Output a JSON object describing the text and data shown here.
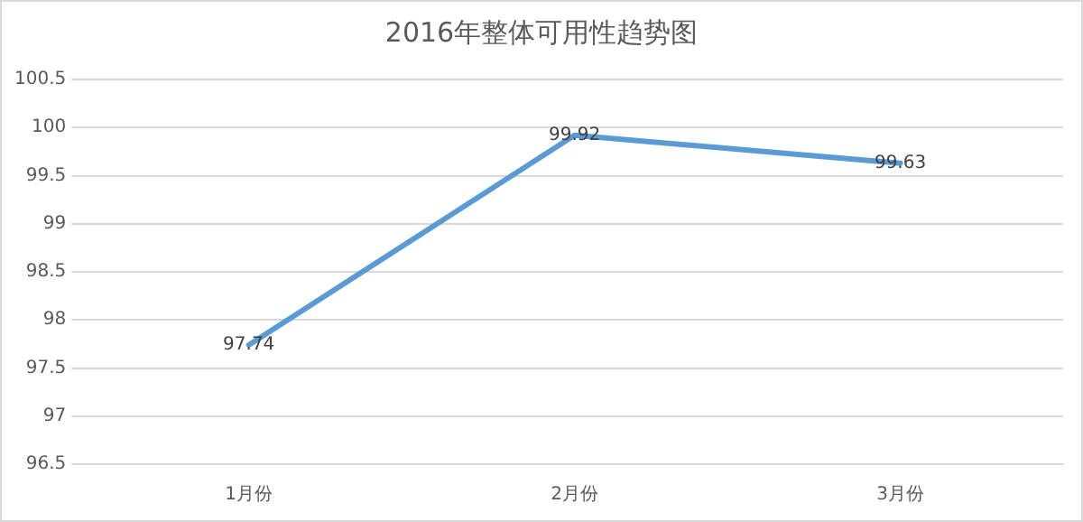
{
  "chart_data": {
    "type": "line",
    "title": "2016年整体可用性趋势图",
    "categories": [
      "1月份",
      "2月份",
      "3月份"
    ],
    "series": [
      {
        "color": "#5b9bd5",
        "values": [
          97.74,
          99.92,
          99.63
        ]
      }
    ],
    "ylim": [
      96.5,
      100.5
    ],
    "yticks": [
      96.5,
      97,
      97.5,
      98,
      98.5,
      99,
      99.5,
      100,
      100.5
    ],
    "grid": "y",
    "legend": false,
    "marker": "none",
    "line_style": "solid",
    "data_labels": true
  }
}
